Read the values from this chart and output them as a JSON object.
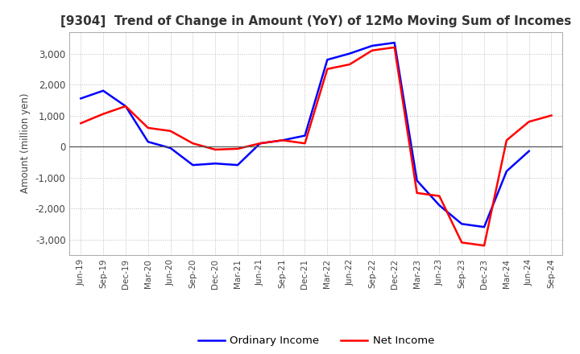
{
  "title": "[9304]  Trend of Change in Amount (YoY) of 12Mo Moving Sum of Incomes",
  "ylabel": "Amount (million yen)",
  "xlabels": [
    "Jun-19",
    "Sep-19",
    "Dec-19",
    "Mar-20",
    "Jun-20",
    "Sep-20",
    "Dec-20",
    "Mar-21",
    "Jun-21",
    "Sep-21",
    "Dec-21",
    "Mar-22",
    "Jun-22",
    "Sep-22",
    "Dec-22",
    "Mar-23",
    "Jun-23",
    "Sep-23",
    "Dec-23",
    "Mar-24",
    "Jun-24",
    "Sep-24"
  ],
  "ordinary_income": [
    1550,
    1800,
    1300,
    150,
    -50,
    -600,
    -550,
    -600,
    100,
    200,
    350,
    2800,
    3000,
    3250,
    3350,
    -1100,
    -1900,
    -2500,
    -2600,
    -800,
    -150,
    null
  ],
  "net_income": [
    750,
    1050,
    1300,
    600,
    500,
    100,
    -100,
    -75,
    100,
    200,
    100,
    2500,
    2650,
    3100,
    3200,
    -1500,
    -1600,
    -3100,
    -3200,
    200,
    800,
    1000
  ],
  "ordinary_color": "#0000ff",
  "net_color": "#ff0000",
  "ylim": [
    -3500,
    3700
  ],
  "yticks": [
    -3000,
    -2000,
    -1000,
    0,
    1000,
    2000,
    3000
  ],
  "background_color": "#ffffff",
  "grid_color": "#bbbbbb",
  "title_fontsize": 11,
  "legend_labels": [
    "Ordinary Income",
    "Net Income"
  ]
}
